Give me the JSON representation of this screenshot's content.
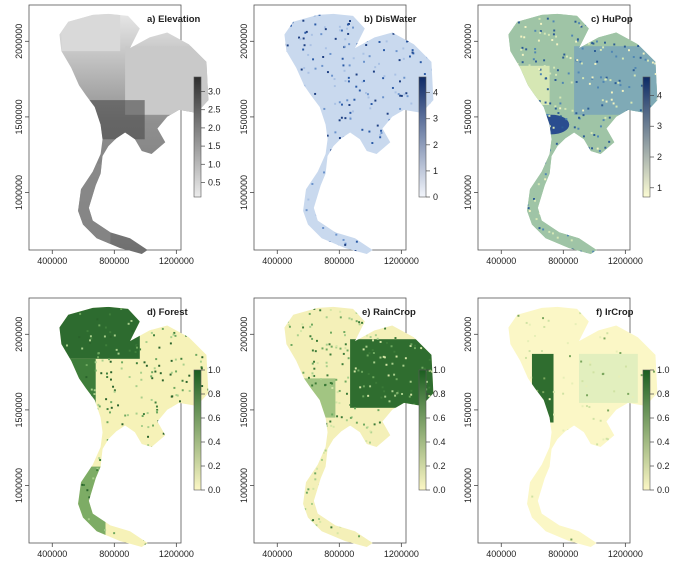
{
  "figure": {
    "x_ticks": [
      "400000",
      "800000",
      "1200000"
    ],
    "y_ticks": [
      "1000000",
      "1500000",
      "2000000"
    ]
  },
  "chart_data": [
    {
      "type": "heatmap",
      "title": "a) Elevation",
      "xlim": [
        250000,
        1230000
      ],
      "ylim": [
        620000,
        2240000
      ],
      "colorbar": {
        "ticks": [
          "3.0",
          "2.5",
          "2.0",
          "1.5",
          "1.0",
          "0.5"
        ],
        "tick_values": [
          3.0,
          2.5,
          2.0,
          1.5,
          1.0,
          0.5
        ],
        "range": [
          0.1,
          3.4
        ],
        "colors": [
          "#2e2e2e",
          "#ececec"
        ]
      }
    },
    {
      "type": "heatmap",
      "title": "b) DisWater",
      "xlim": [
        250000,
        1230000
      ],
      "ylim": [
        620000,
        2240000
      ],
      "colorbar": {
        "ticks": [
          "4",
          "3",
          "2",
          "1",
          "0"
        ],
        "tick_values": [
          4,
          3,
          2,
          1,
          0
        ],
        "range": [
          0,
          4.6
        ],
        "colors": [
          "#0d2a67",
          "#f2f5fb"
        ]
      }
    },
    {
      "type": "heatmap",
      "title": "c) HuPop",
      "xlim": [
        250000,
        1230000
      ],
      "ylim": [
        620000,
        2240000
      ],
      "colorbar": {
        "ticks": [
          "4",
          "3",
          "2",
          "1"
        ],
        "tick_values": [
          4,
          3,
          2,
          1
        ],
        "range": [
          0.7,
          4.6
        ],
        "colors": [
          "#0c2a66",
          "#fcfcd4"
        ]
      }
    },
    {
      "type": "heatmap",
      "title": "d) Forest",
      "xlim": [
        250000,
        1230000
      ],
      "ylim": [
        620000,
        2240000
      ],
      "colorbar": {
        "ticks": [
          "1.0",
          "0.8",
          "0.6",
          "0.4",
          "0.2",
          "0.0"
        ],
        "tick_values": [
          1.0,
          0.8,
          0.6,
          0.4,
          0.2,
          0.0
        ],
        "range": [
          0,
          1
        ],
        "colors": [
          "#1b5e20",
          "#fcf7c5"
        ]
      }
    },
    {
      "type": "heatmap",
      "title": "e) RainCrop",
      "xlim": [
        250000,
        1230000
      ],
      "ylim": [
        620000,
        2240000
      ],
      "colorbar": {
        "ticks": [
          "1.0",
          "0.8",
          "0.6",
          "0.4",
          "0.2",
          "0.0"
        ],
        "tick_values": [
          1.0,
          0.8,
          0.6,
          0.4,
          0.2,
          0.0
        ],
        "range": [
          0,
          1
        ],
        "colors": [
          "#1b5e20",
          "#fcf7c5"
        ]
      }
    },
    {
      "type": "heatmap",
      "title": "f) IrCrop",
      "xlim": [
        250000,
        1230000
      ],
      "ylim": [
        620000,
        2240000
      ],
      "colorbar": {
        "ticks": [
          "1.0",
          "0.8",
          "0.6",
          "0.4",
          "0.2",
          "0.0"
        ],
        "tick_values": [
          1.0,
          0.8,
          0.6,
          0.4,
          0.2,
          0.0
        ],
        "range": [
          0,
          1
        ],
        "colors": [
          "#1b5e20",
          "#fcf7c5"
        ]
      }
    }
  ]
}
